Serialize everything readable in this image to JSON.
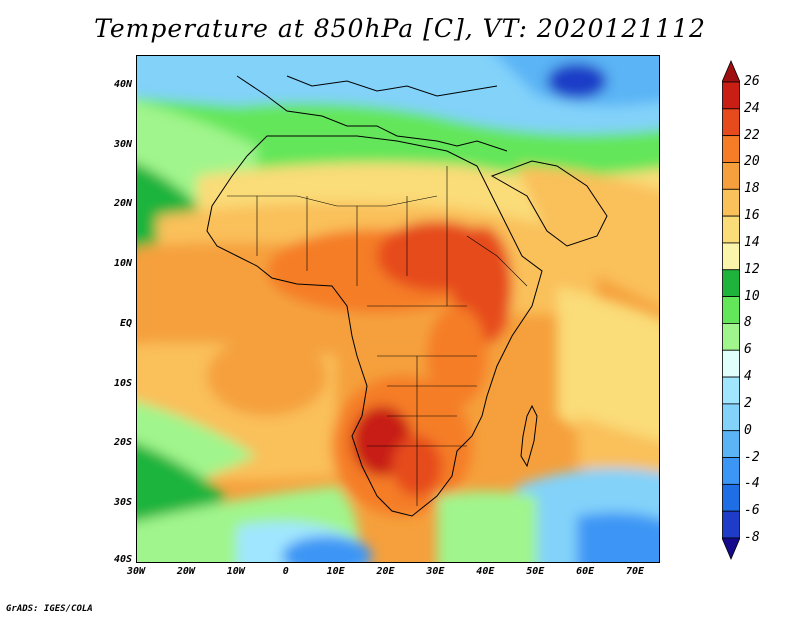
{
  "title": "Temperature at 850hPa [C], VT: 2020121112",
  "footer": "GrADS: IGES/COLA",
  "map": {
    "variable": "Temperature at 850hPa",
    "units": "C",
    "valid_time": "2020121112",
    "lat_range": [
      -40,
      45
    ],
    "lon_range": [
      -30,
      75
    ],
    "lat_ticks": [
      {
        "value": 40,
        "label": "40N"
      },
      {
        "value": 30,
        "label": "30N"
      },
      {
        "value": 20,
        "label": "20N"
      },
      {
        "value": 10,
        "label": "10N"
      },
      {
        "value": 0,
        "label": "EQ"
      },
      {
        "value": -10,
        "label": "10S"
      },
      {
        "value": -20,
        "label": "20S"
      },
      {
        "value": -30,
        "label": "30S"
      },
      {
        "value": -40,
        "label": "40S"
      }
    ],
    "lon_ticks": [
      {
        "value": -30,
        "label": "30W"
      },
      {
        "value": -20,
        "label": "20W"
      },
      {
        "value": -10,
        "label": "10W"
      },
      {
        "value": 0,
        "label": "0"
      },
      {
        "value": 10,
        "label": "10E"
      },
      {
        "value": 20,
        "label": "20E"
      },
      {
        "value": 30,
        "label": "30E"
      },
      {
        "value": 40,
        "label": "40E"
      },
      {
        "value": 50,
        "label": "50E"
      },
      {
        "value": 60,
        "label": "60E"
      },
      {
        "value": 70,
        "label": "70E"
      }
    ]
  },
  "colorbar": {
    "levels": [
      "-8",
      "-6",
      "-4",
      "-2",
      "0",
      "2",
      "4",
      "6",
      "8",
      "10",
      "12",
      "14",
      "16",
      "18",
      "20",
      "22",
      "24",
      "26"
    ],
    "colors": [
      "#160a8c",
      "#1e3cc8",
      "#1e6ee6",
      "#3c96f5",
      "#5ab4f5",
      "#82d2fa",
      "#a0e6ff",
      "#e0fffa",
      "#a0f58c",
      "#64e65a",
      "#1eb43c",
      "#faf5aa",
      "#fadc78",
      "#fac05a",
      "#f5a03c",
      "#f57d28",
      "#e64b1e",
      "#c81e14",
      "#a00f0f"
    ],
    "color_labels": [
      "<-8",
      "-8 to -6",
      "-6 to -4",
      "-4 to -2",
      "-2 to 0",
      "0 to 2",
      "2 to 4",
      "4 to 6",
      "6 to 8",
      "8 to 10",
      "10 to 12",
      "12 to 14",
      "14 to 16",
      "16 to 18",
      "18 to 20",
      "20 to 22",
      "22 to 24",
      "24 to 26",
      ">26"
    ]
  }
}
